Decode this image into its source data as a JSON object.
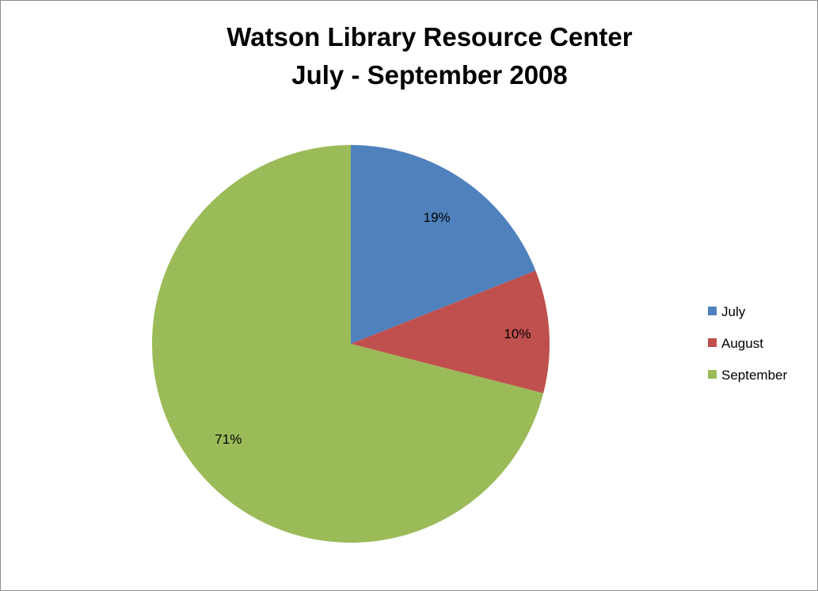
{
  "chart_data": {
    "type": "pie",
    "title": "Watson Library Resource Center",
    "subtitle": "July - September 2008",
    "categories": [
      "July",
      "August",
      "September"
    ],
    "values": [
      19,
      10,
      71
    ],
    "data_labels": [
      "19%",
      "10%",
      "71%"
    ],
    "colors": [
      "#4f81bd",
      "#c0504d",
      "#9bbb59"
    ],
    "legend": {
      "position": "right",
      "entries": [
        "July",
        "August",
        "September"
      ]
    }
  }
}
